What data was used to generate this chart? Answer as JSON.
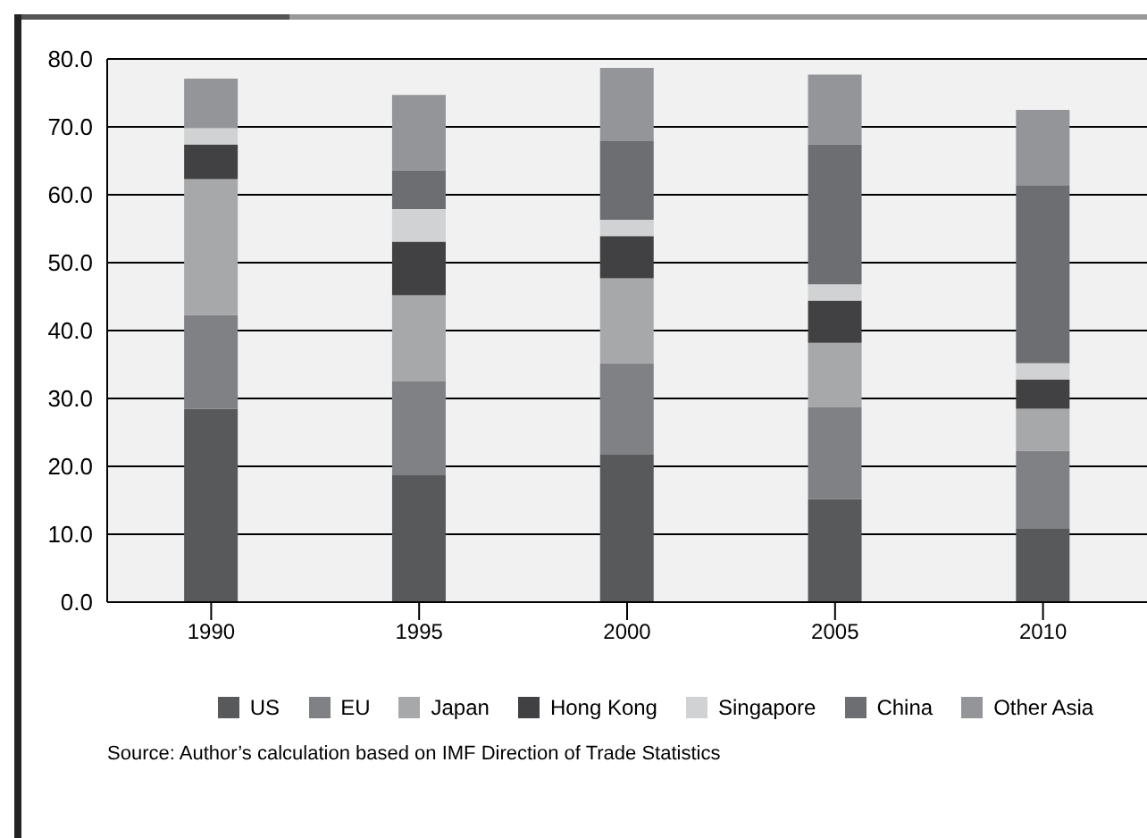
{
  "chart_data": {
    "type": "bar",
    "stacked": true,
    "categories": [
      "1990",
      "1995",
      "2000",
      "2005",
      "2010"
    ],
    "series": [
      {
        "name": "US",
        "color": "#58595b",
        "values": [
          28.5,
          18.7,
          21.7,
          15.2,
          10.9
        ]
      },
      {
        "name": "EU",
        "color": "#808184",
        "values": [
          13.8,
          13.8,
          13.5,
          13.5,
          11.4
        ]
      },
      {
        "name": "Japan",
        "color": "#a7a8aa",
        "values": [
          20.0,
          12.7,
          12.5,
          9.5,
          6.2
        ]
      },
      {
        "name": "Hong Kong",
        "color": "#414042",
        "values": [
          5.1,
          7.9,
          6.2,
          6.2,
          4.3
        ]
      },
      {
        "name": "Singapore",
        "color": "#d1d2d3",
        "values": [
          2.4,
          4.8,
          2.4,
          2.4,
          2.4
        ]
      },
      {
        "name": "China",
        "color": "#6d6e71",
        "values": [
          0,
          5.7,
          11.6,
          20.6,
          26.2
        ]
      },
      {
        "name": "Other Asia",
        "color": "#939598",
        "values": [
          7.3,
          11.1,
          10.8,
          10.3,
          11.1
        ]
      }
    ],
    "ylim": [
      0,
      80
    ],
    "yticks": [
      {
        "value": 0,
        "label": "0.0"
      },
      {
        "value": 10,
        "label": "10.0"
      },
      {
        "value": 20,
        "label": "20.0"
      },
      {
        "value": 30,
        "label": "30.0"
      },
      {
        "value": 40,
        "label": "40.0"
      },
      {
        "value": 50,
        "label": "50.0"
      },
      {
        "value": 60,
        "label": "60.0"
      },
      {
        "value": 70,
        "label": "70.0"
      },
      {
        "value": 80,
        "label": "80.0"
      }
    ],
    "grid": "y",
    "legend": "bottom",
    "annotations": [
      "Source: Author’s calculation based on IMF Direction of Trade Statistics"
    ]
  }
}
